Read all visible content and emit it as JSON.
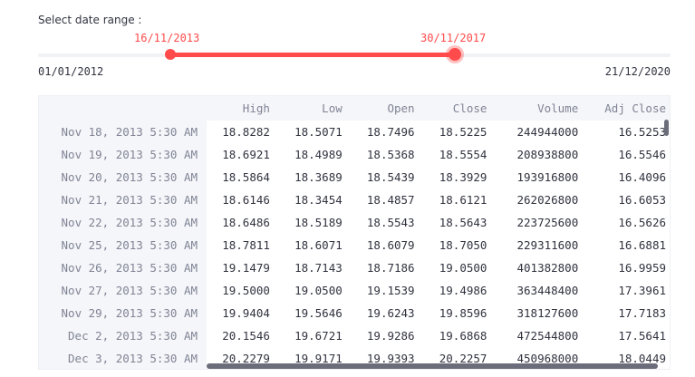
{
  "slider": {
    "label": "Select date range :",
    "value_start": "16/11/2013",
    "value_end": "30/11/2017",
    "min": "01/01/2012",
    "max": "21/12/2020",
    "accent_color": "#ff4b4b"
  },
  "table": {
    "columns": [
      "High",
      "Low",
      "Open",
      "Close",
      "Volume",
      "Adj Close"
    ],
    "rows": [
      {
        "index": "Nov 18, 2013 5:30 AM",
        "cells": [
          "18.8282",
          "18.5071",
          "18.7496",
          "18.5225",
          "244944000",
          "16.5253"
        ]
      },
      {
        "index": "Nov 19, 2013 5:30 AM",
        "cells": [
          "18.6921",
          "18.4989",
          "18.5368",
          "18.5554",
          "208938800",
          "16.5546"
        ]
      },
      {
        "index": "Nov 20, 2013 5:30 AM",
        "cells": [
          "18.5864",
          "18.3689",
          "18.5439",
          "18.3929",
          "193916800",
          "16.4096"
        ]
      },
      {
        "index": "Nov 21, 2013 5:30 AM",
        "cells": [
          "18.6146",
          "18.3454",
          "18.4857",
          "18.6121",
          "262026800",
          "16.6053"
        ]
      },
      {
        "index": "Nov 22, 2013 5:30 AM",
        "cells": [
          "18.6486",
          "18.5189",
          "18.5543",
          "18.5643",
          "223725600",
          "16.5626"
        ]
      },
      {
        "index": "Nov 25, 2013 5:30 AM",
        "cells": [
          "18.7811",
          "18.6071",
          "18.6079",
          "18.7050",
          "229311600",
          "16.6881"
        ]
      },
      {
        "index": "Nov 26, 2013 5:30 AM",
        "cells": [
          "19.1479",
          "18.7143",
          "18.7186",
          "19.0500",
          "401382800",
          "16.9959"
        ]
      },
      {
        "index": "Nov 27, 2013 5:30 AM",
        "cells": [
          "19.5000",
          "19.0500",
          "19.1539",
          "19.4986",
          "363448400",
          "17.3961"
        ]
      },
      {
        "index": "Nov 29, 2013 5:30 AM",
        "cells": [
          "19.9404",
          "19.5646",
          "19.6243",
          "19.8596",
          "318127600",
          "17.7183"
        ]
      },
      {
        "index": "Dec 2, 2013 5:30 AM",
        "cells": [
          "20.1546",
          "19.6721",
          "19.9286",
          "19.6868",
          "472544800",
          "17.5641"
        ]
      },
      {
        "index": "Dec 3, 2013 5:30 AM",
        "cells": [
          "20.2279",
          "19.9171",
          "19.9393",
          "20.2257",
          "450968000",
          "18.0449"
        ]
      }
    ]
  }
}
